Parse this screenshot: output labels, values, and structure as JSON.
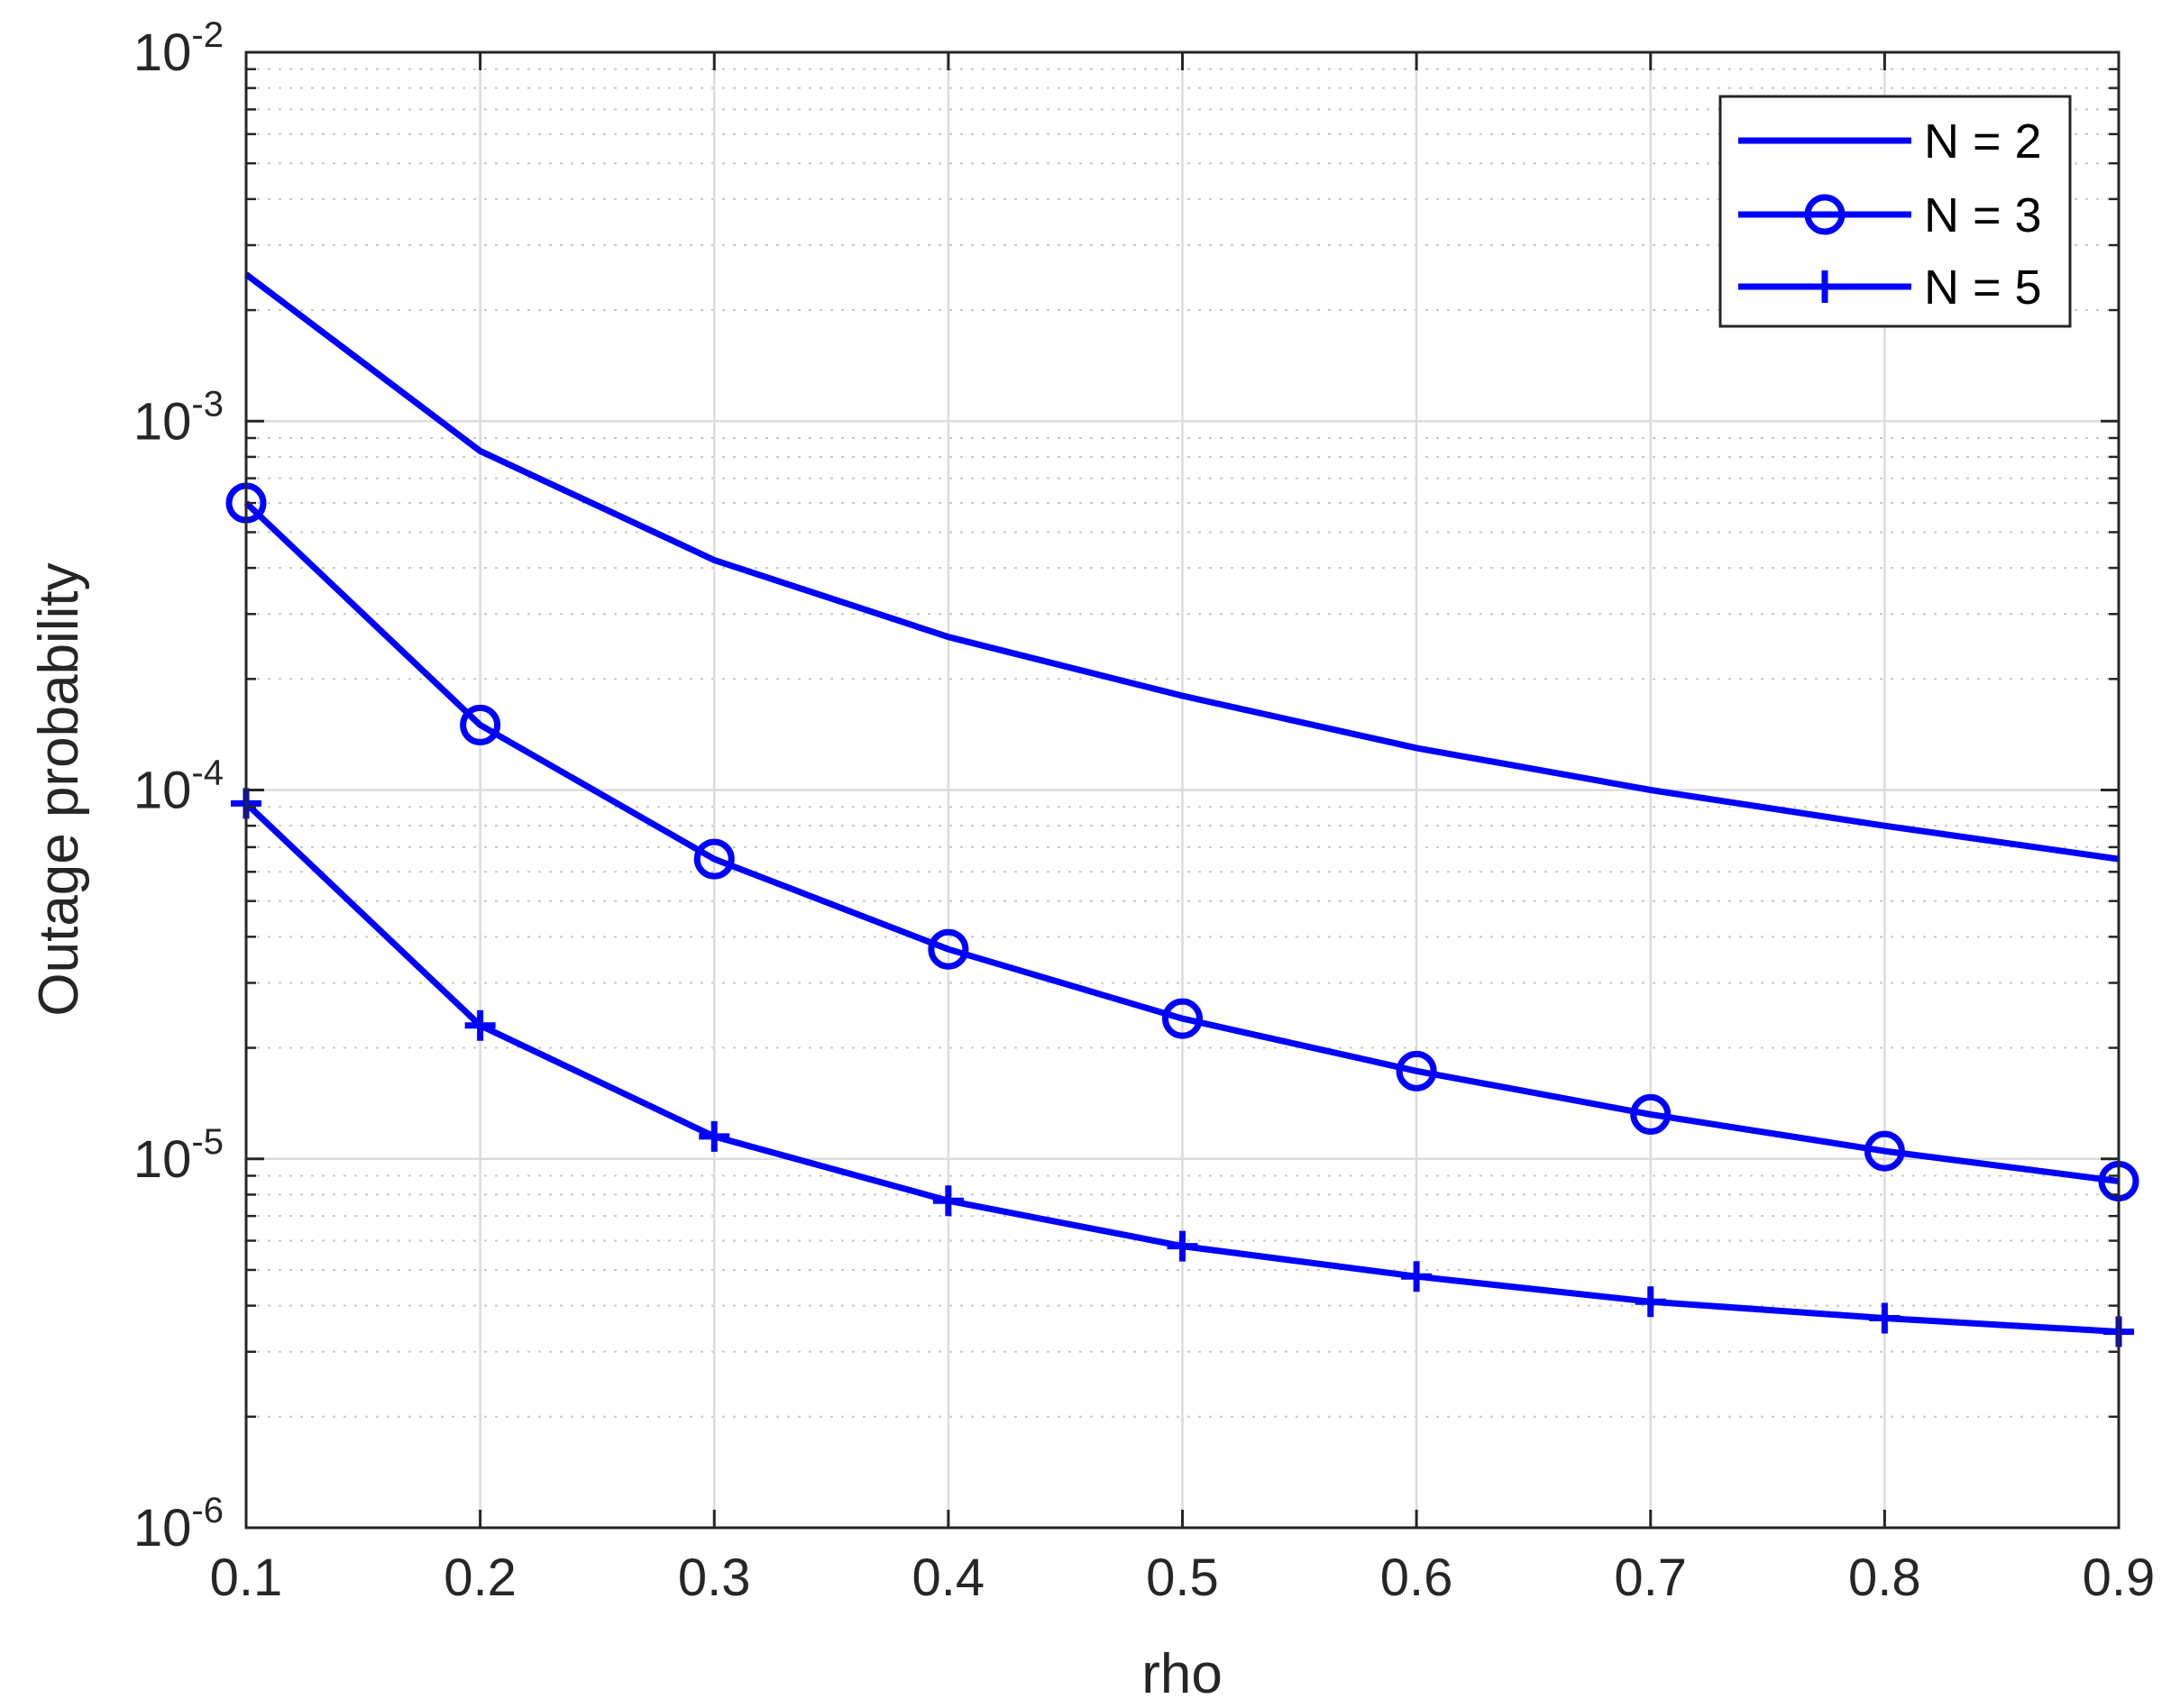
{
  "chart_data": {
    "type": "line",
    "xlabel": "rho",
    "ylabel": "Outage probability",
    "x": [
      0.1,
      0.2,
      0.3,
      0.4,
      0.5,
      0.6,
      0.7,
      0.8,
      0.9
    ],
    "xlim": [
      0.1,
      0.9
    ],
    "ylim": [
      1e-06,
      0.01
    ],
    "yscale": "log",
    "grid": true,
    "legend_position": "top-right",
    "x_ticks": [
      "0.1",
      "0.2",
      "0.3",
      "0.4",
      "0.5",
      "0.6",
      "0.7",
      "0.8",
      "0.9"
    ],
    "y_ticks": [
      {
        "base": "10",
        "exp": "-6"
      },
      {
        "base": "10",
        "exp": "-5"
      },
      {
        "base": "10",
        "exp": "-4"
      },
      {
        "base": "10",
        "exp": "-3"
      },
      {
        "base": "10",
        "exp": "-2"
      }
    ],
    "series": [
      {
        "name": "N = 2",
        "marker": "none",
        "color": "#0000ff",
        "values": [
          0.0025,
          0.00083,
          0.00042,
          0.00026,
          0.00018,
          0.00013,
          0.0001,
          8e-05,
          6.5e-05
        ]
      },
      {
        "name": "N = 3",
        "marker": "circle",
        "color": "#0000ff",
        "values": [
          0.0006,
          0.00015,
          6.5e-05,
          3.7e-05,
          2.4e-05,
          1.73e-05,
          1.32e-05,
          1.05e-05,
          8.7e-06
        ]
      },
      {
        "name": "N = 5",
        "marker": "plus",
        "color": "#0000ff",
        "values": [
          9.2e-05,
          2.3e-05,
          1.15e-05,
          7.7e-06,
          5.8e-06,
          4.8e-06,
          4.1e-06,
          3.7e-06,
          3.4e-06
        ]
      }
    ]
  }
}
